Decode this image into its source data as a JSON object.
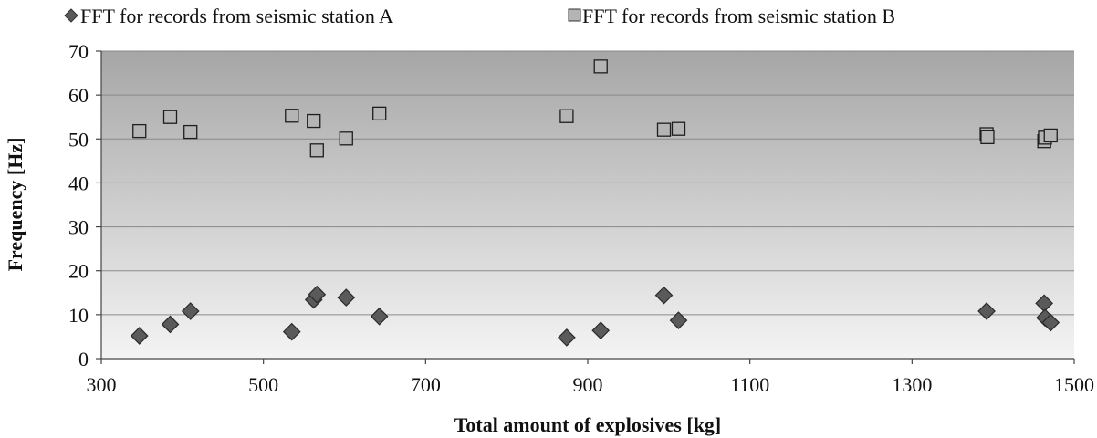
{
  "chart_data": {
    "type": "scatter",
    "xlabel": "Total amount of explosives [kg]",
    "ylabel": "Frequency [Hz]",
    "xlim": [
      300,
      1500
    ],
    "ylim": [
      0,
      70
    ],
    "x_ticks": [
      300,
      500,
      700,
      900,
      1100,
      1300,
      1500
    ],
    "y_ticks": [
      0,
      10,
      20,
      30,
      40,
      50,
      60,
      70
    ],
    "grid": "horizontal",
    "legend_position": "top",
    "series": [
      {
        "name": "FFT for records from seismic station A",
        "marker": "diamond",
        "color": "#5a5a5a",
        "points": [
          [
            347,
            5.2
          ],
          [
            385,
            7.8
          ],
          [
            410,
            10.8
          ],
          [
            535,
            6.1
          ],
          [
            562,
            13.4
          ],
          [
            566,
            14.6
          ],
          [
            602,
            13.9
          ],
          [
            643,
            9.6
          ],
          [
            874,
            4.8
          ],
          [
            916,
            6.4
          ],
          [
            994,
            14.4
          ],
          [
            1012,
            8.7
          ],
          [
            1392,
            10.8
          ],
          [
            1463,
            12.6
          ],
          [
            1464,
            9.3
          ],
          [
            1471,
            8.2
          ]
        ]
      },
      {
        "name": "FFT for records from seismic station B",
        "marker": "square",
        "color": "#b4b4b4",
        "points": [
          [
            347,
            51.8
          ],
          [
            385,
            55.0
          ],
          [
            410,
            51.6
          ],
          [
            535,
            55.3
          ],
          [
            562,
            54.1
          ],
          [
            566,
            47.4
          ],
          [
            602,
            50.1
          ],
          [
            643,
            55.8
          ],
          [
            874,
            55.2
          ],
          [
            916,
            66.5
          ],
          [
            994,
            52.1
          ],
          [
            1012,
            52.3
          ],
          [
            1392,
            51.1
          ],
          [
            1393,
            50.4
          ],
          [
            1463,
            49.5
          ],
          [
            1464,
            50.3
          ],
          [
            1471,
            50.8
          ]
        ]
      }
    ]
  }
}
